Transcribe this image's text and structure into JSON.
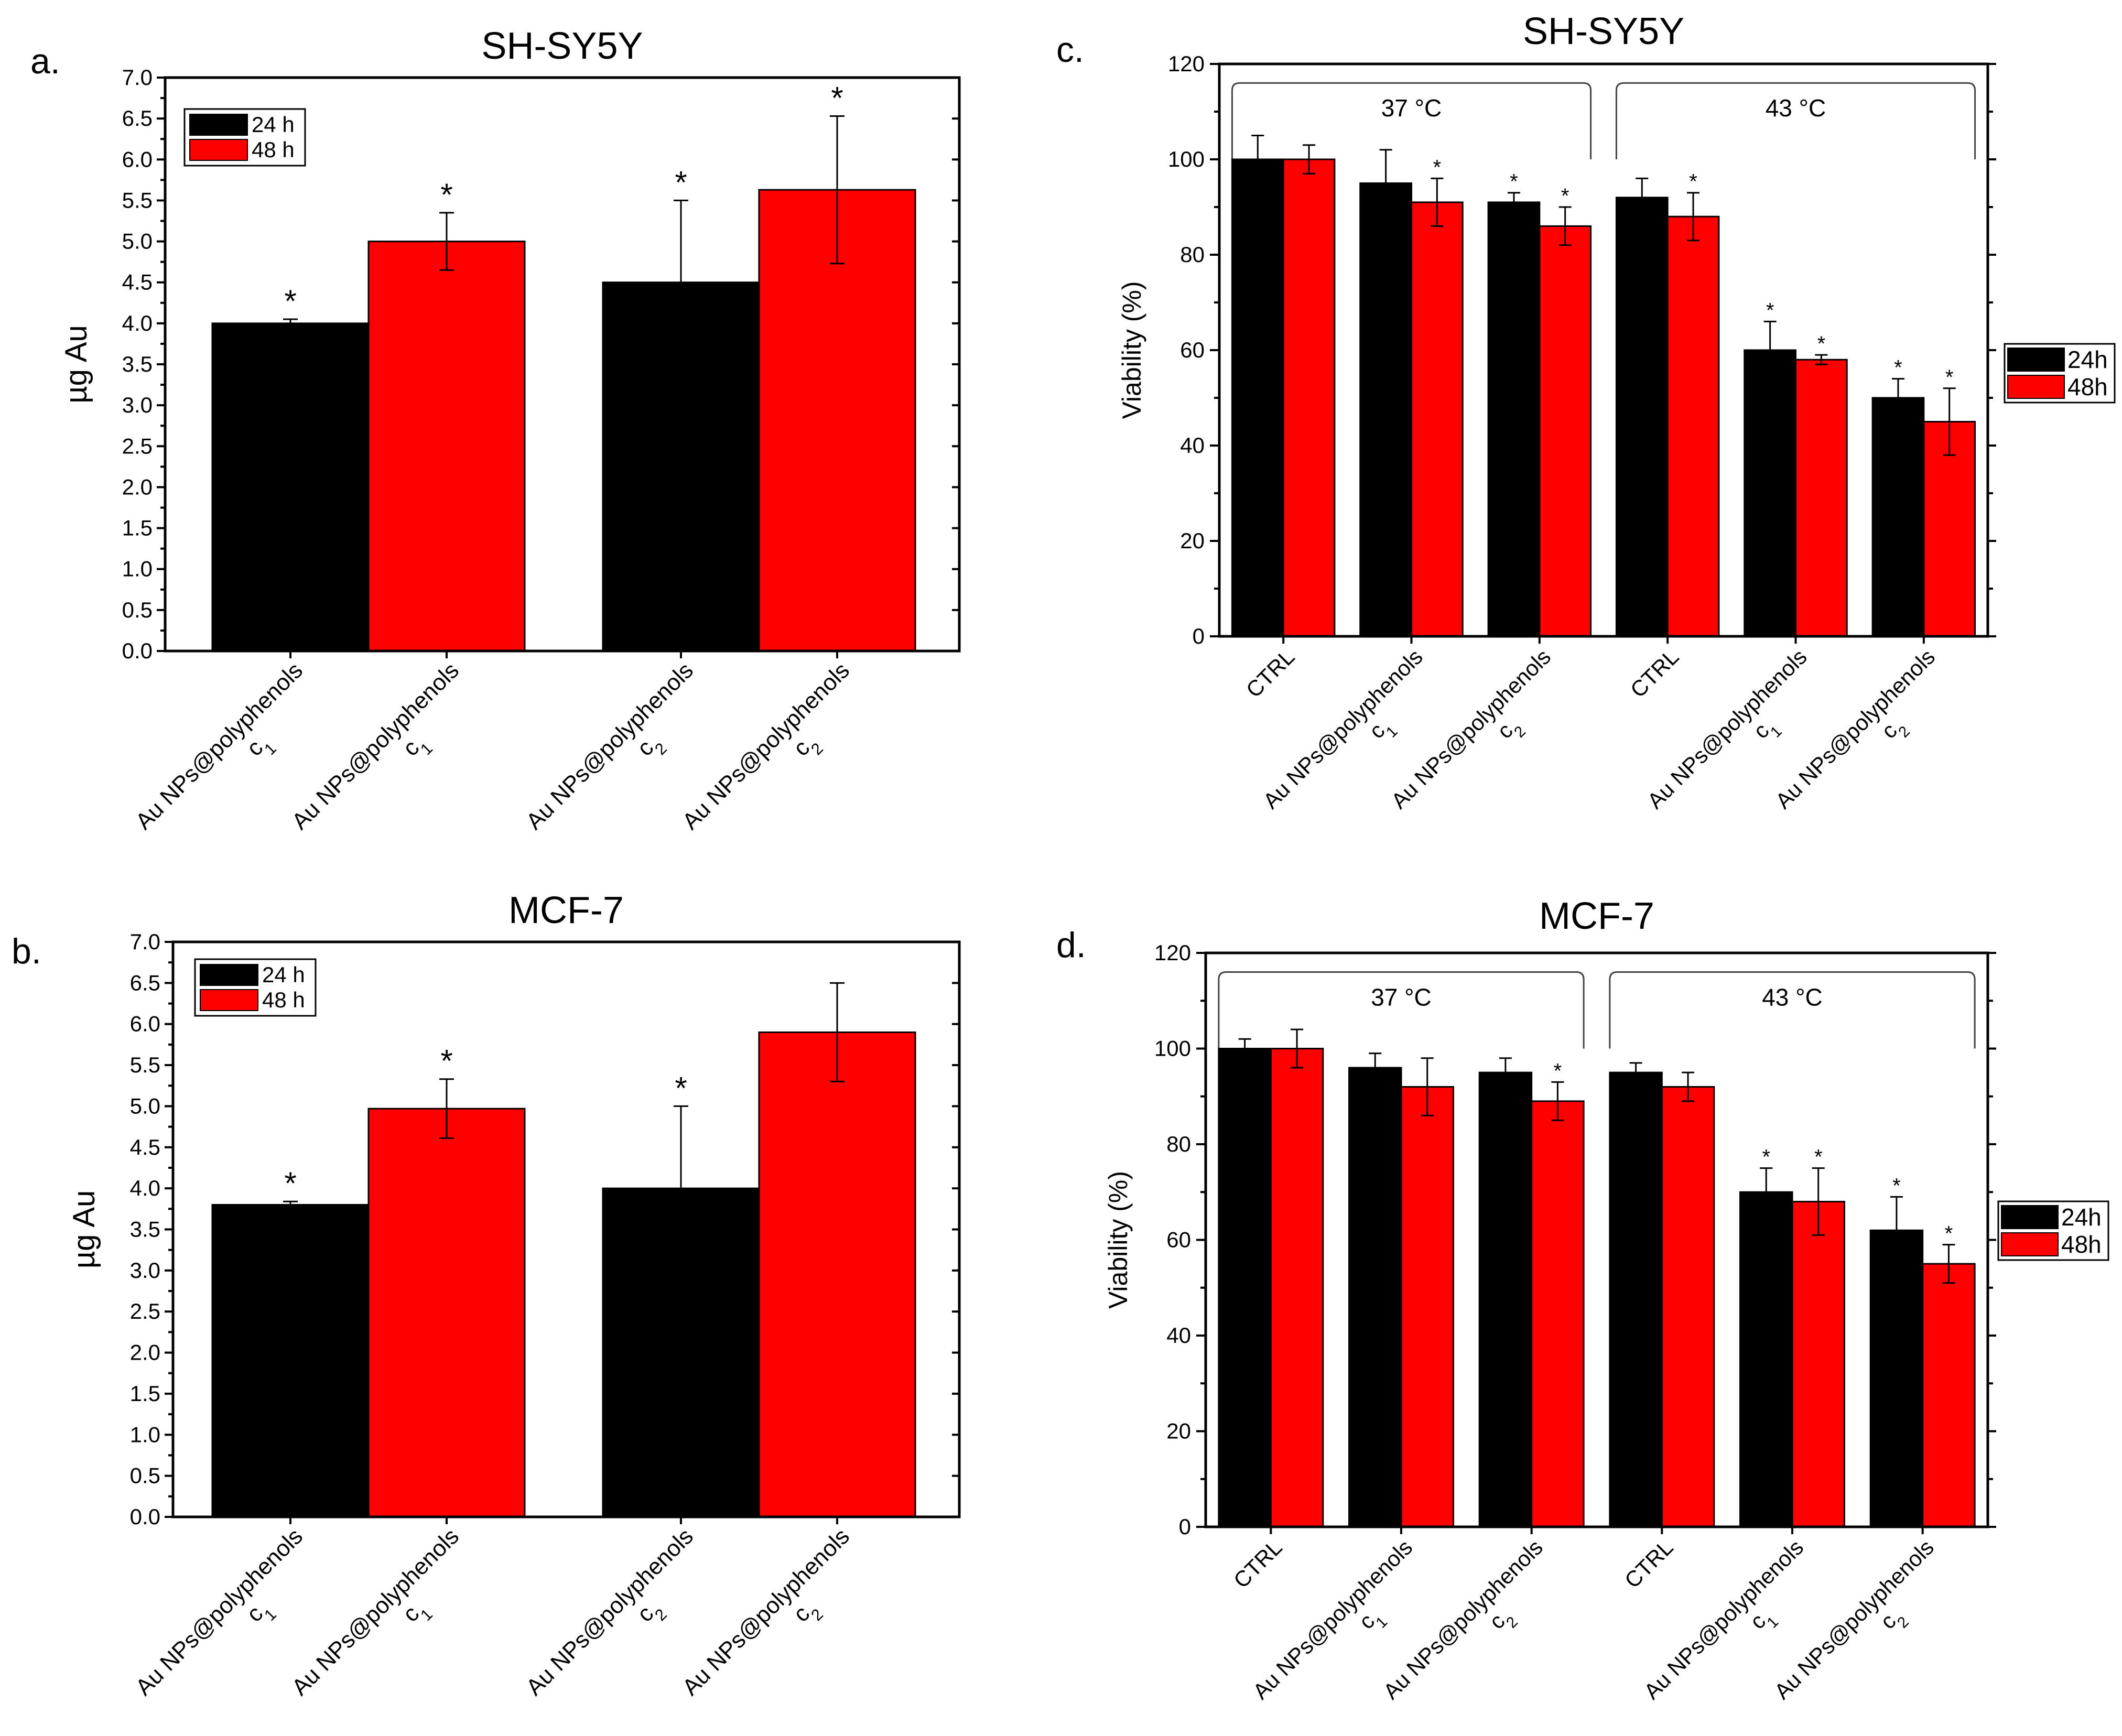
{
  "colors": {
    "series_24h": "#000000",
    "series_48h": "#ff0000"
  },
  "chart_data": [
    {
      "panel_label": "a.",
      "type": "bar",
      "title": "SH-SY5Y",
      "xlabel": "",
      "ylabel": "µg Au",
      "ylim": [
        0,
        7.0
      ],
      "yticks": [
        "0.0",
        "0.5",
        "1.0",
        "1.5",
        "2.0",
        "2.5",
        "3.0",
        "3.5",
        "4.0",
        "4.5",
        "5.0",
        "5.5",
        "6.0",
        "6.5",
        "7.0"
      ],
      "legend_position": "top-left",
      "bars": [
        {
          "category": "Au NPs@polyphenols",
          "sub": "1",
          "series": "24 h",
          "value": 4.0,
          "error": 0.05,
          "star": "*"
        },
        {
          "category": "Au NPs@polyphenols",
          "sub": "1",
          "series": "48 h",
          "value": 5.0,
          "error": 0.35,
          "star": "*"
        },
        {
          "category": "Au NPs@polyphenols",
          "sub": "2",
          "series": "24 h",
          "value": 4.5,
          "error": 1.0,
          "star": "*"
        },
        {
          "category": "Au NPs@polyphenols",
          "sub": "2",
          "series": "48 h",
          "value": 5.63,
          "error": 0.9,
          "star": "*"
        }
      ],
      "series": [
        {
          "name": "24 h",
          "color": "#000000"
        },
        {
          "name": "48 h",
          "color": "#ff0000"
        }
      ]
    },
    {
      "panel_label": "b.",
      "type": "bar",
      "title": "MCF-7",
      "xlabel": "",
      "ylabel": "µg Au",
      "ylim": [
        0,
        7.0
      ],
      "yticks": [
        "0.0",
        "0.5",
        "1.0",
        "1.5",
        "2.0",
        "2.5",
        "3.0",
        "3.5",
        "4.0",
        "4.5",
        "5.0",
        "5.5",
        "6.0",
        "6.5",
        "7.0"
      ],
      "legend_position": "top-left",
      "bars": [
        {
          "category": "Au NPs@polyphenols",
          "sub": "1",
          "series": "24 h",
          "value": 3.8,
          "error": 0.04,
          "star": "*"
        },
        {
          "category": "Au NPs@polyphenols",
          "sub": "1",
          "series": "48 h",
          "value": 4.97,
          "error": 0.36,
          "star": "*"
        },
        {
          "category": "Au NPs@polyphenols",
          "sub": "2",
          "series": "24 h",
          "value": 4.0,
          "error": 1.0,
          "star": "*"
        },
        {
          "category": "Au NPs@polyphenols",
          "sub": "2",
          "series": "48 h",
          "value": 5.9,
          "error": 0.6,
          "star": ""
        }
      ],
      "series": [
        {
          "name": "24 h",
          "color": "#000000"
        },
        {
          "name": "48 h",
          "color": "#ff0000"
        }
      ]
    },
    {
      "panel_label": "c.",
      "type": "bar",
      "title": "SH-SY5Y",
      "xlabel": "",
      "ylabel": "Viability (%)",
      "ylim": [
        0,
        120
      ],
      "yticks": [
        "0",
        "20",
        "40",
        "60",
        "80",
        "100",
        "120"
      ],
      "legend_position": "right",
      "brackets": [
        "37 °C",
        "43 °C"
      ],
      "categories": [
        {
          "label": "CTRL",
          "sub": ""
        },
        {
          "label": "Au NPs@polyphenols",
          "sub": "1"
        },
        {
          "label": "Au NPs@polyphenols",
          "sub": "2"
        },
        {
          "label": "CTRL",
          "sub": ""
        },
        {
          "label": "Au NPs@polyphenols",
          "sub": "1"
        },
        {
          "label": "Au NPs@polyphenols",
          "sub": "2"
        }
      ],
      "series": [
        {
          "name": "24h",
          "color": "#000000",
          "values": [
            100,
            95,
            91,
            92,
            60,
            50
          ],
          "errors": [
            5,
            7,
            2,
            4,
            6,
            4
          ],
          "stars": [
            "",
            "",
            "*",
            "",
            "*",
            "*"
          ]
        },
        {
          "name": "48h",
          "color": "#ff0000",
          "values": [
            100,
            91,
            86,
            88,
            58,
            45
          ],
          "errors": [
            3,
            5,
            4,
            5,
            1,
            7
          ],
          "stars": [
            "",
            "*",
            "*",
            "*",
            "*",
            "*"
          ]
        }
      ]
    },
    {
      "panel_label": "d.",
      "type": "bar",
      "title": "MCF-7",
      "xlabel": "",
      "ylabel": "Viability (%)",
      "ylim": [
        0,
        120
      ],
      "yticks": [
        "0",
        "20",
        "40",
        "60",
        "80",
        "100",
        "120"
      ],
      "legend_position": "right",
      "brackets": [
        "37 °C",
        "43 °C"
      ],
      "categories": [
        {
          "label": "CTRL",
          "sub": ""
        },
        {
          "label": "Au NPs@polyphenols",
          "sub": "1"
        },
        {
          "label": "Au NPs@polyphenols",
          "sub": "2"
        },
        {
          "label": "CTRL",
          "sub": ""
        },
        {
          "label": "Au NPs@polyphenols",
          "sub": "1"
        },
        {
          "label": "Au NPs@polyphenols",
          "sub": "2"
        }
      ],
      "series": [
        {
          "name": "24h",
          "color": "#000000",
          "values": [
            100,
            96,
            95,
            95,
            70,
            62
          ],
          "errors": [
            2,
            3,
            3,
            2,
            5,
            7
          ],
          "stars": [
            "",
            "",
            "",
            "",
            "*",
            "*"
          ]
        },
        {
          "name": "48h",
          "color": "#ff0000",
          "values": [
            100,
            92,
            89,
            92,
            68,
            55
          ],
          "errors": [
            4,
            6,
            4,
            3,
            7,
            4
          ],
          "stars": [
            "",
            "",
            "*",
            "",
            "*",
            "*"
          ]
        }
      ]
    }
  ]
}
